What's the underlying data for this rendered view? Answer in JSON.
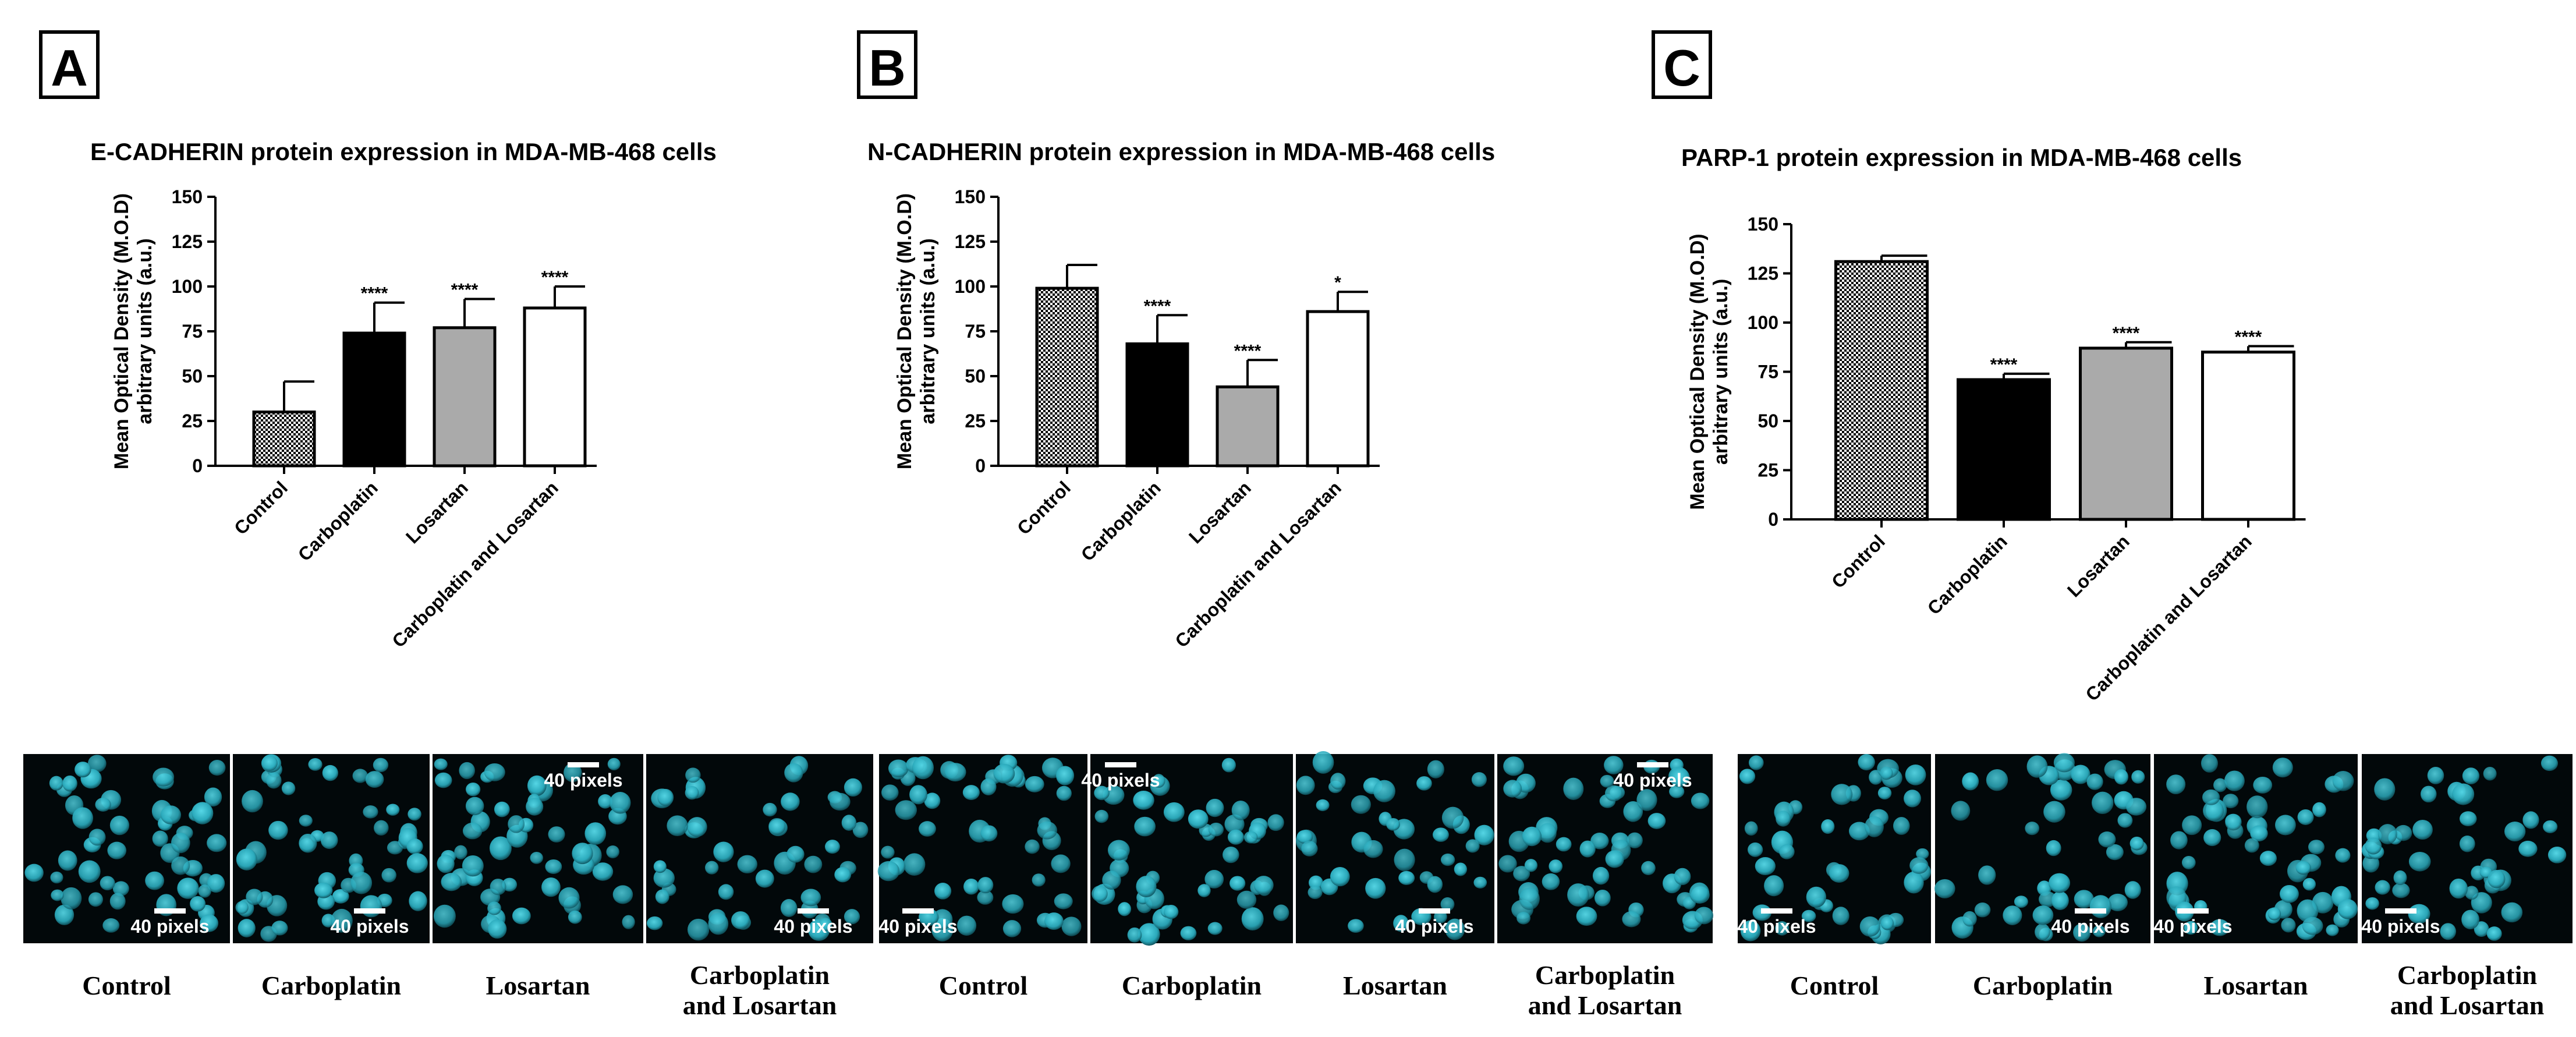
{
  "panels": [
    "A",
    "B",
    "C"
  ],
  "chart_data": [
    {
      "type": "bar",
      "panel": "A",
      "title": "E-CADHERIN protein expression in MDA-MB-468 cells",
      "ylabel_line1": "Mean Optical Density (M.O.D)",
      "ylabel_line2": "arbitrary units (a.u.)",
      "ylim": [
        0,
        150
      ],
      "yticks": [
        "0",
        "25",
        "50",
        "75",
        "100",
        "125",
        "150"
      ],
      "categories": [
        "Control",
        "Carboplatin",
        "Losartan",
        "Carboplatin and Losartan"
      ],
      "values": [
        30,
        74,
        77,
        88
      ],
      "errors": [
        17,
        17,
        16,
        12
      ],
      "significance": [
        "",
        "****",
        "****",
        "****"
      ],
      "fills": [
        "checker",
        "#000000",
        "#aaaaaa",
        "#ffffff"
      ]
    },
    {
      "type": "bar",
      "panel": "B",
      "title": "N-CADHERIN protein expression in MDA-MB-468 cells",
      "ylabel_line1": "Mean Optical Density (M.O.D)",
      "ylabel_line2": "arbitrary units (a.u.)",
      "ylim": [
        0,
        150
      ],
      "yticks": [
        "0",
        "25",
        "50",
        "75",
        "100",
        "125",
        "150"
      ],
      "categories": [
        "Control",
        "Carboplatin",
        "Losartan",
        "Carboplatin and Losartan"
      ],
      "values": [
        99,
        68,
        44,
        86
      ],
      "errors": [
        13,
        16,
        15,
        11
      ],
      "significance": [
        "",
        "****",
        "****",
        "*"
      ],
      "fills": [
        "checker",
        "#000000",
        "#aaaaaa",
        "#ffffff"
      ]
    },
    {
      "type": "bar",
      "panel": "C",
      "title": "PARP-1 protein expression in MDA-MB-468 cells",
      "ylabel_line1": "Mean Optical Density (M.O.D)",
      "ylabel_line2": "arbitrary units (a.u.)",
      "ylim": [
        0,
        150
      ],
      "yticks": [
        "0",
        "25",
        "50",
        "75",
        "100",
        "125",
        "150"
      ],
      "categories": [
        "Control",
        "Carboplatin",
        "Losartan",
        "Carboplatin and Losartan"
      ],
      "values": [
        131,
        71,
        87,
        85
      ],
      "errors": [
        3,
        3,
        3,
        3
      ],
      "significance": [
        "",
        "****",
        "****",
        "****"
      ],
      "fills": [
        "checker",
        "#000000",
        "#aaaaaa",
        "#ffffff"
      ]
    }
  ],
  "micrograph_groups": [
    {
      "scale_label": "40 pixels",
      "conditions": [
        "Control",
        "Carboplatin",
        "Losartan",
        "Carboplatin\nand Losartan"
      ]
    },
    {
      "scale_label": "40 pixels",
      "conditions": [
        "Control",
        "Carboplatin",
        "Losartan",
        "Carboplatin\nand Losartan"
      ]
    },
    {
      "scale_label": "40 pixels",
      "conditions": [
        "Control",
        "Carboplatin",
        "Losartan",
        "Carboplatin\nand Losartan"
      ]
    }
  ],
  "colors": {
    "cell_nuclei": "#2fb7c9",
    "micrograph_background": "#02080a",
    "axis": "#000000"
  }
}
